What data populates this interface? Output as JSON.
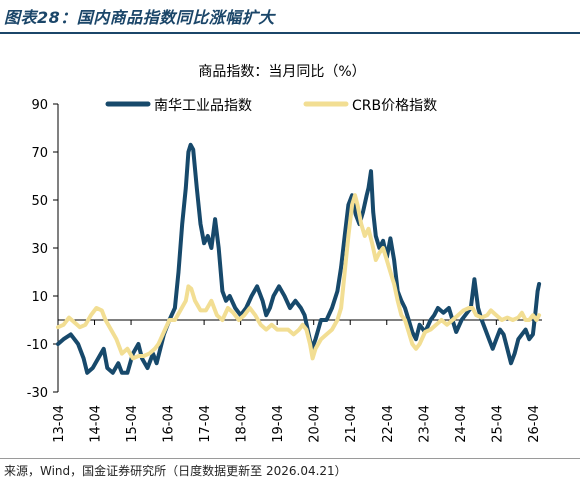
{
  "figure_title": "图表28：国内商品指数同比涨幅扩大",
  "source_note": "来源，Wind，国金证券研究所（日度数据更新至 2026.04.21）",
  "colors": {
    "title": "#1b4669",
    "nanhua": "#17496b",
    "crb": "#f2de93",
    "axis": "#000000"
  },
  "chart_data": {
    "type": "line",
    "title": "商品指数：当月同比（%）",
    "xlabel": "",
    "ylabel": "",
    "ylim": [
      -30,
      90
    ],
    "yticks": [
      -30,
      -10,
      10,
      30,
      50,
      70,
      90
    ],
    "xlim": [
      2013.25,
      2026.5
    ],
    "xticks": [
      "13-04",
      "14-04",
      "15-04",
      "16-04",
      "17-04",
      "18-04",
      "19-04",
      "20-04",
      "21-04",
      "22-04",
      "23-04",
      "24-04",
      "25-04",
      "26-04"
    ],
    "grid": false,
    "legend": "top",
    "series": [
      {
        "name": "南华工业品指数",
        "color": "#17496b",
        "points": [
          [
            2013.25,
            -10
          ],
          [
            2013.4,
            -8
          ],
          [
            2013.6,
            -6
          ],
          [
            2013.8,
            -10
          ],
          [
            2013.95,
            -16
          ],
          [
            2014.05,
            -22
          ],
          [
            2014.2,
            -20
          ],
          [
            2014.35,
            -16
          ],
          [
            2014.5,
            -12
          ],
          [
            2014.6,
            -20
          ],
          [
            2014.75,
            -22
          ],
          [
            2014.9,
            -18
          ],
          [
            2015.0,
            -22
          ],
          [
            2015.15,
            -22
          ],
          [
            2015.3,
            -14
          ],
          [
            2015.45,
            -10
          ],
          [
            2015.55,
            -16
          ],
          [
            2015.7,
            -20
          ],
          [
            2015.85,
            -14
          ],
          [
            2015.95,
            -18
          ],
          [
            2016.05,
            -12
          ],
          [
            2016.15,
            -6
          ],
          [
            2016.3,
            0
          ],
          [
            2016.45,
            5
          ],
          [
            2016.55,
            20
          ],
          [
            2016.65,
            40
          ],
          [
            2016.75,
            55
          ],
          [
            2016.82,
            70
          ],
          [
            2016.88,
            73
          ],
          [
            2016.95,
            71
          ],
          [
            2017.05,
            55
          ],
          [
            2017.15,
            40
          ],
          [
            2017.25,
            32
          ],
          [
            2017.35,
            35
          ],
          [
            2017.45,
            30
          ],
          [
            2017.55,
            42
          ],
          [
            2017.65,
            30
          ],
          [
            2017.75,
            12
          ],
          [
            2017.85,
            8
          ],
          [
            2017.95,
            10
          ],
          [
            2018.1,
            5
          ],
          [
            2018.25,
            2
          ],
          [
            2018.4,
            5
          ],
          [
            2018.55,
            10
          ],
          [
            2018.7,
            14
          ],
          [
            2018.85,
            8
          ],
          [
            2018.95,
            2
          ],
          [
            2019.05,
            5
          ],
          [
            2019.15,
            10
          ],
          [
            2019.3,
            14
          ],
          [
            2019.45,
            10
          ],
          [
            2019.6,
            5
          ],
          [
            2019.75,
            8
          ],
          [
            2019.9,
            5
          ],
          [
            2020.0,
            2
          ],
          [
            2020.1,
            -5
          ],
          [
            2020.2,
            -12
          ],
          [
            2020.3,
            -8
          ],
          [
            2020.45,
            0
          ],
          [
            2020.6,
            0
          ],
          [
            2020.75,
            5
          ],
          [
            2020.9,
            12
          ],
          [
            2021.0,
            22
          ],
          [
            2021.1,
            35
          ],
          [
            2021.2,
            48
          ],
          [
            2021.3,
            52
          ],
          [
            2021.4,
            44
          ],
          [
            2021.5,
            40
          ],
          [
            2021.6,
            45
          ],
          [
            2021.7,
            52
          ],
          [
            2021.75,
            55
          ],
          [
            2021.82,
            62
          ],
          [
            2021.88,
            45
          ],
          [
            2021.95,
            35
          ],
          [
            2022.05,
            30
          ],
          [
            2022.15,
            33
          ],
          [
            2022.25,
            26
          ],
          [
            2022.35,
            34
          ],
          [
            2022.45,
            25
          ],
          [
            2022.55,
            12
          ],
          [
            2022.65,
            8
          ],
          [
            2022.75,
            5
          ],
          [
            2022.85,
            0
          ],
          [
            2022.95,
            -5
          ],
          [
            2023.05,
            -8
          ],
          [
            2023.15,
            -2
          ],
          [
            2023.3,
            -5
          ],
          [
            2023.45,
            0
          ],
          [
            2023.55,
            2
          ],
          [
            2023.65,
            5
          ],
          [
            2023.8,
            3
          ],
          [
            2023.95,
            5
          ],
          [
            2024.05,
            0
          ],
          [
            2024.15,
            -5
          ],
          [
            2024.3,
            0
          ],
          [
            2024.45,
            3
          ],
          [
            2024.55,
            5
          ],
          [
            2024.65,
            17
          ],
          [
            2024.75,
            5
          ],
          [
            2024.85,
            0
          ],
          [
            2024.95,
            -4
          ],
          [
            2025.05,
            -8
          ],
          [
            2025.15,
            -12
          ],
          [
            2025.25,
            -8
          ],
          [
            2025.35,
            -4
          ],
          [
            2025.45,
            -6
          ],
          [
            2025.55,
            -12
          ],
          [
            2025.65,
            -18
          ],
          [
            2025.75,
            -14
          ],
          [
            2025.85,
            -8
          ],
          [
            2025.95,
            -6
          ],
          [
            2026.05,
            -4
          ],
          [
            2026.15,
            -8
          ],
          [
            2026.25,
            -6
          ],
          [
            2026.32,
            3
          ],
          [
            2026.38,
            12
          ],
          [
            2026.42,
            15
          ]
        ]
      },
      {
        "name": "CRB价格指数",
        "color": "#f2de93",
        "points": [
          [
            2013.25,
            -3
          ],
          [
            2013.4,
            -2
          ],
          [
            2013.55,
            1
          ],
          [
            2013.7,
            -1
          ],
          [
            2013.85,
            -3
          ],
          [
            2014.0,
            -2
          ],
          [
            2014.15,
            2
          ],
          [
            2014.3,
            5
          ],
          [
            2014.45,
            4
          ],
          [
            2014.55,
            0
          ],
          [
            2014.7,
            -4
          ],
          [
            2014.85,
            -8
          ],
          [
            2015.0,
            -14
          ],
          [
            2015.15,
            -12
          ],
          [
            2015.3,
            -16
          ],
          [
            2015.45,
            -15
          ],
          [
            2015.6,
            -15
          ],
          [
            2015.75,
            -14
          ],
          [
            2015.9,
            -12
          ],
          [
            2016.0,
            -10
          ],
          [
            2016.15,
            -5
          ],
          [
            2016.3,
            0
          ],
          [
            2016.45,
            0
          ],
          [
            2016.6,
            4
          ],
          [
            2016.75,
            8
          ],
          [
            2016.82,
            14
          ],
          [
            2016.9,
            13
          ],
          [
            2017.0,
            8
          ],
          [
            2017.15,
            4
          ],
          [
            2017.3,
            4
          ],
          [
            2017.45,
            8
          ],
          [
            2017.6,
            2
          ],
          [
            2017.75,
            0
          ],
          [
            2017.9,
            5
          ],
          [
            2018.05,
            3
          ],
          [
            2018.2,
            0
          ],
          [
            2018.35,
            2
          ],
          [
            2018.5,
            5
          ],
          [
            2018.65,
            2
          ],
          [
            2018.8,
            -2
          ],
          [
            2018.95,
            -4
          ],
          [
            2019.1,
            -2
          ],
          [
            2019.25,
            -4
          ],
          [
            2019.4,
            -4
          ],
          [
            2019.55,
            -4
          ],
          [
            2019.7,
            -6
          ],
          [
            2019.85,
            -4
          ],
          [
            2019.95,
            -2
          ],
          [
            2020.05,
            -4
          ],
          [
            2020.15,
            -10
          ],
          [
            2020.22,
            -16
          ],
          [
            2020.3,
            -12
          ],
          [
            2020.45,
            -8
          ],
          [
            2020.6,
            -6
          ],
          [
            2020.75,
            -4
          ],
          [
            2020.9,
            0
          ],
          [
            2021.0,
            5
          ],
          [
            2021.1,
            20
          ],
          [
            2021.2,
            35
          ],
          [
            2021.3,
            48
          ],
          [
            2021.38,
            52
          ],
          [
            2021.45,
            48
          ],
          [
            2021.55,
            40
          ],
          [
            2021.65,
            35
          ],
          [
            2021.75,
            38
          ],
          [
            2021.85,
            32
          ],
          [
            2021.95,
            25
          ],
          [
            2022.05,
            28
          ],
          [
            2022.15,
            30
          ],
          [
            2022.25,
            25
          ],
          [
            2022.35,
            20
          ],
          [
            2022.45,
            15
          ],
          [
            2022.55,
            8
          ],
          [
            2022.65,
            2
          ],
          [
            2022.75,
            0
          ],
          [
            2022.85,
            -5
          ],
          [
            2022.95,
            -10
          ],
          [
            2023.05,
            -12
          ],
          [
            2023.15,
            -10
          ],
          [
            2023.3,
            -5
          ],
          [
            2023.45,
            -4
          ],
          [
            2023.6,
            -2
          ],
          [
            2023.75,
            0
          ],
          [
            2023.9,
            -2
          ],
          [
            2024.05,
            0
          ],
          [
            2024.2,
            2
          ],
          [
            2024.35,
            4
          ],
          [
            2024.5,
            5
          ],
          [
            2024.6,
            5
          ],
          [
            2024.7,
            2
          ],
          [
            2024.85,
            1
          ],
          [
            2025.0,
            2
          ],
          [
            2025.1,
            4
          ],
          [
            2025.25,
            2
          ],
          [
            2025.4,
            0
          ],
          [
            2025.55,
            1
          ],
          [
            2025.7,
            0
          ],
          [
            2025.85,
            1
          ],
          [
            2025.95,
            3
          ],
          [
            2026.05,
            0
          ],
          [
            2026.15,
            0
          ],
          [
            2026.25,
            2
          ],
          [
            2026.35,
            0
          ],
          [
            2026.42,
            2
          ]
        ]
      }
    ]
  }
}
